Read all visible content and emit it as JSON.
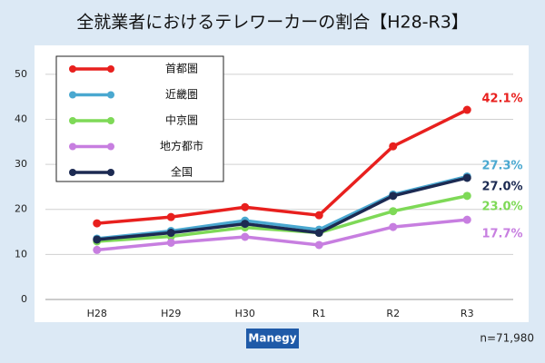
{
  "chart_data": {
    "type": "line",
    "title": "全就業者におけるテレワーカーの割合【H28-R3】",
    "categories": [
      "H28",
      "H29",
      "H30",
      "R1",
      "R2",
      "R3"
    ],
    "series": [
      {
        "name": "首都圏",
        "color": "#e8201e",
        "values": [
          16.9,
          18.3,
          20.5,
          18.7,
          34.0,
          42.1
        ],
        "value_labels": [
          null,
          null,
          null,
          null,
          null,
          "42.1%"
        ]
      },
      {
        "name": "近畿圏",
        "color": "#4aa8d0",
        "values": [
          13.5,
          15.2,
          17.5,
          15.5,
          23.3,
          27.3
        ],
        "value_labels": [
          null,
          null,
          null,
          null,
          null,
          "27.3%"
        ]
      },
      {
        "name": "中京圏",
        "color": "#7ed957",
        "values": [
          12.9,
          14.0,
          16.0,
          14.8,
          19.6,
          23.0
        ],
        "value_labels": [
          null,
          null,
          null,
          null,
          null,
          "23.0%"
        ]
      },
      {
        "name": "地方都市",
        "color": "#c77ee0",
        "values": [
          11.0,
          12.6,
          13.9,
          12.1,
          16.1,
          17.7
        ],
        "value_labels": [
          null,
          null,
          null,
          null,
          null,
          "17.7%"
        ]
      },
      {
        "name": "全国",
        "color": "#1c2a52",
        "values": [
          13.3,
          14.8,
          16.8,
          14.8,
          23.0,
          27.0
        ],
        "value_labels": [
          null,
          null,
          null,
          null,
          null,
          "27.0%"
        ]
      }
    ],
    "ylim": [
      0,
      55
    ],
    "yticks": [
      0,
      10,
      20,
      30,
      40,
      50
    ],
    "grid": true,
    "legend": "upper left",
    "logo": "Manegy",
    "note": "n=71,980"
  }
}
